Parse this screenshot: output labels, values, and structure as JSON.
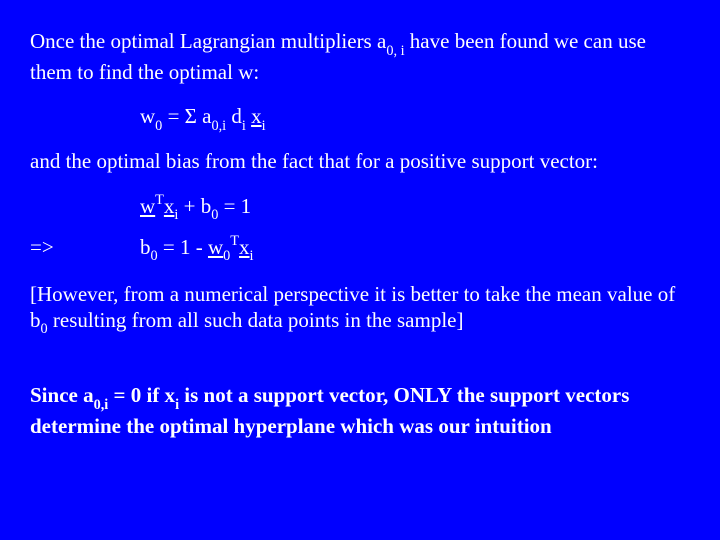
{
  "background_color": "#0000ff",
  "text_color": "#ffffff",
  "font_family": "Times New Roman",
  "base_fontsize": 21,
  "p1a": "Once the optimal Lagrangian multipliers a",
  "p1_sub": "0, i",
  "p1b": " have been found we can use them to find the optimal w:",
  "eq1_w": "w",
  "eq1_wsub": "0",
  "eq1_mid": " = Σ a",
  "eq1_asub": "0,i",
  "eq1_d": " d",
  "eq1_dsub": "i",
  "eq1_sp": " ",
  "eq1_x": "x",
  "eq1_xsub": "i",
  "p2": "and the optimal bias from the fact that for a positive support vector:",
  "eq2_w": "w",
  "eq2_T": "T",
  "eq2_x": "x",
  "eq2_xsub": "i",
  "eq2_mid": " + b",
  "eq2_bsub": "0",
  "eq2_end": " =  1",
  "arrow": "=>",
  "eq3_b": "b",
  "eq3_bsub": "0",
  "eq3_mid": " =  1 - ",
  "eq3_w": "w",
  "eq3_wsub": "0",
  "eq3_T": "T",
  "eq3_x": "x",
  "eq3_xsub": "i",
  "p3a": "[However, from a numerical perspective it is better to take the mean value of b",
  "p3_sub": "0",
  "p3b": " resulting from all such data points in the sample]",
  "p4a": "Since a",
  "p4_sub1": "0,i",
  "p4b": " = 0 if x",
  "p4_sub2": "i",
  "p4c": " is not a support vector, ONLY the support vectors determine the optimal hyperplane which was our intuition"
}
